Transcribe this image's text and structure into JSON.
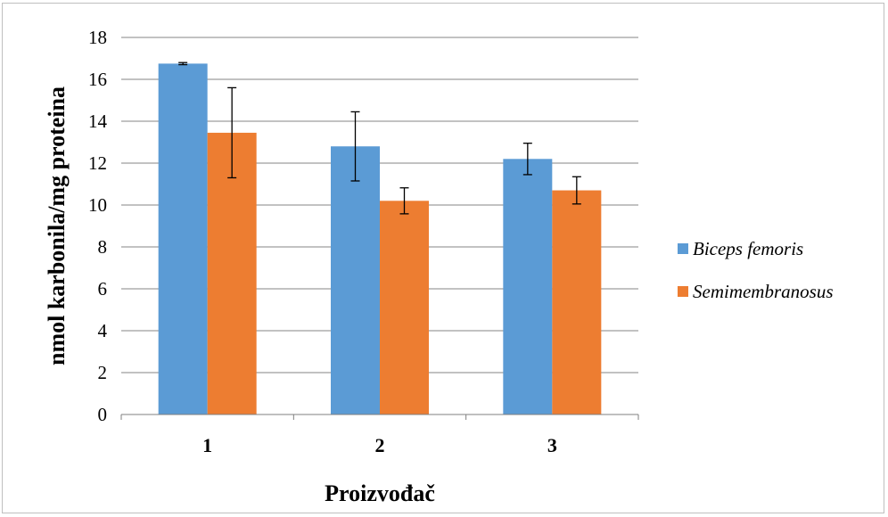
{
  "chart_data": {
    "type": "bar",
    "categories": [
      "1",
      "2",
      "3"
    ],
    "series": [
      {
        "name": "Biceps femoris",
        "color": "#5b9bd5",
        "values": [
          16.75,
          12.8,
          12.2
        ],
        "error": [
          0.05,
          1.65,
          0.75
        ]
      },
      {
        "name": "Semimembranosus",
        "color": "#ed7d31",
        "values": [
          13.45,
          10.2,
          10.7
        ],
        "error": [
          2.15,
          0.62,
          0.65
        ]
      }
    ],
    "xlabel": "Proizvođač",
    "ylabel": "nmol karbonila/mg proteina",
    "ylim": [
      0,
      18
    ],
    "yticks": [
      0,
      2,
      4,
      6,
      8,
      10,
      12,
      14,
      16,
      18
    ],
    "grid": true,
    "legend_position": "right",
    "error_bars": true
  }
}
